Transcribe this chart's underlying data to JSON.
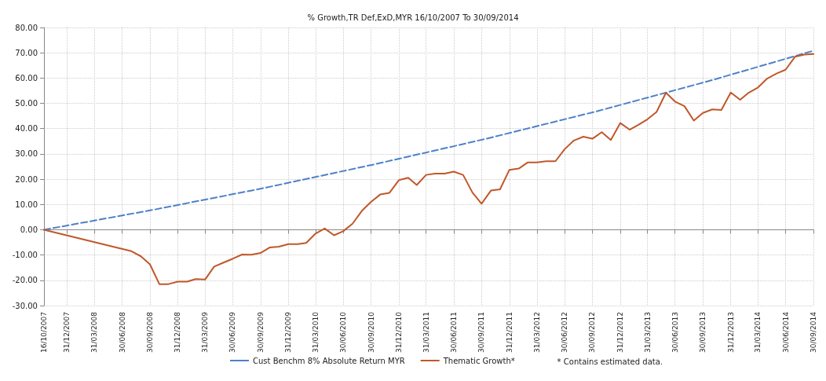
{
  "chart_data": {
    "type": "line",
    "title": "% Growth,TR Def,ExD,MYR 16/10/2007 To 30/09/2014",
    "xlim": [
      "2007-10-16",
      "2014-09-30"
    ],
    "xticks": [
      {
        "value": "2007-10-16",
        "label": "16/10/2007"
      },
      {
        "value": "2007-12-31",
        "label": "31/12/2007"
      },
      {
        "value": "2008-03-31",
        "label": "31/03/2008"
      },
      {
        "value": "2008-06-30",
        "label": "30/06/2008"
      },
      {
        "value": "2008-09-30",
        "label": "30/09/2008"
      },
      {
        "value": "2008-12-31",
        "label": "31/12/2008"
      },
      {
        "value": "2009-03-31",
        "label": "31/03/2009"
      },
      {
        "value": "2009-06-30",
        "label": "30/06/2009"
      },
      {
        "value": "2009-09-30",
        "label": "30/09/2009"
      },
      {
        "value": "2009-12-31",
        "label": "31/12/2009"
      },
      {
        "value": "2010-03-31",
        "label": "31/03/2010"
      },
      {
        "value": "2010-06-30",
        "label": "30/06/2010"
      },
      {
        "value": "2010-09-30",
        "label": "30/09/2010"
      },
      {
        "value": "2010-12-31",
        "label": "31/12/2010"
      },
      {
        "value": "2011-03-31",
        "label": "31/03/2011"
      },
      {
        "value": "2011-06-30",
        "label": "30/06/2011"
      },
      {
        "value": "2011-09-30",
        "label": "30/09/2011"
      },
      {
        "value": "2011-12-31",
        "label": "31/12/2011"
      },
      {
        "value": "2012-03-31",
        "label": "31/03/2012"
      },
      {
        "value": "2012-06-30",
        "label": "30/06/2012"
      },
      {
        "value": "2012-09-30",
        "label": "30/09/2012"
      },
      {
        "value": "2012-12-31",
        "label": "31/12/2012"
      },
      {
        "value": "2013-03-31",
        "label": "31/03/2013"
      },
      {
        "value": "2013-06-30",
        "label": "30/06/2013"
      },
      {
        "value": "2013-09-30",
        "label": "30/09/2013"
      },
      {
        "value": "2013-12-31",
        "label": "31/12/2013"
      },
      {
        "value": "2014-03-31",
        "label": "31/03/2014"
      },
      {
        "value": "2014-06-30",
        "label": "30/06/2014"
      },
      {
        "value": "2014-09-30",
        "label": "30/09/2014"
      }
    ],
    "ylim": [
      -30,
      80
    ],
    "yticks": [
      {
        "value": -30,
        "label": "-30.00"
      },
      {
        "value": -20,
        "label": "-20.00"
      },
      {
        "value": -10,
        "label": "-10.00"
      },
      {
        "value": 0,
        "label": "0.00"
      },
      {
        "value": 10,
        "label": "10.00"
      },
      {
        "value": 20,
        "label": "20.00"
      },
      {
        "value": 30,
        "label": "30.00"
      },
      {
        "value": 40,
        "label": "40.00"
      },
      {
        "value": 50,
        "label": "50.00"
      },
      {
        "value": 60,
        "label": "60.00"
      },
      {
        "value": 70,
        "label": "70.00"
      },
      {
        "value": 80,
        "label": "80.00"
      }
    ],
    "grid": true,
    "legend": "bottom",
    "marker": "none",
    "annotations": [
      "* Contains estimated data."
    ],
    "series": [
      {
        "name": "Cust Benchm 8% Absolute Return MYR",
        "color": "#4f81c7",
        "line_style": "dashed",
        "x": [
          "2007-10-16",
          "2008-10-16",
          "2009-10-16",
          "2010-10-16",
          "2011-10-16",
          "2012-10-16",
          "2013-10-16",
          "2014-09-30"
        ],
        "values": [
          0,
          8,
          16.6,
          26,
          36,
          46.9,
          58.7,
          70.8
        ]
      },
      {
        "name": "Thematic Growth*",
        "color": "#c0582a",
        "line_style": "solid",
        "x": [
          "2007-10-16",
          "2008-07-31",
          "2008-08-31",
          "2008-09-30",
          "2008-10-31",
          "2008-11-30",
          "2008-12-31",
          "2009-01-31",
          "2009-02-28",
          "2009-03-31",
          "2009-04-30",
          "2009-05-31",
          "2009-06-30",
          "2009-07-31",
          "2009-08-31",
          "2009-09-30",
          "2009-10-31",
          "2009-11-30",
          "2009-12-31",
          "2010-01-31",
          "2010-02-28",
          "2010-03-31",
          "2010-04-30",
          "2010-05-31",
          "2010-06-30",
          "2010-07-31",
          "2010-08-31",
          "2010-09-30",
          "2010-10-31",
          "2010-11-30",
          "2010-12-31",
          "2011-01-31",
          "2011-02-28",
          "2011-03-31",
          "2011-04-30",
          "2011-05-31",
          "2011-06-30",
          "2011-07-31",
          "2011-08-31",
          "2011-09-30",
          "2011-10-31",
          "2011-11-30",
          "2011-12-31",
          "2012-01-31",
          "2012-02-29",
          "2012-03-31",
          "2012-04-30",
          "2012-05-31",
          "2012-06-30",
          "2012-07-31",
          "2012-08-31",
          "2012-09-30",
          "2012-10-31",
          "2012-11-30",
          "2012-12-31",
          "2013-01-31",
          "2013-02-28",
          "2013-03-31",
          "2013-04-30",
          "2013-05-31",
          "2013-06-30",
          "2013-07-31",
          "2013-08-31",
          "2013-09-30",
          "2013-10-31",
          "2013-11-30",
          "2013-12-31",
          "2014-01-31",
          "2014-02-28",
          "2014-03-31",
          "2014-04-30",
          "2014-05-31",
          "2014-06-30",
          "2014-07-31",
          "2014-08-31",
          "2014-09-30"
        ],
        "values": [
          0,
          -8.5,
          -10.5,
          -13.7,
          -21.5,
          -21.5,
          -20.5,
          -20.5,
          -19.5,
          -19.7,
          -14.6,
          -13,
          -11.5,
          -9.8,
          -9.9,
          -9.2,
          -7,
          -6.7,
          -5.7,
          -5.7,
          -5.2,
          -1.5,
          0.5,
          -2.2,
          -0.6,
          2.4,
          7.5,
          11,
          14,
          14.6,
          19.6,
          20.6,
          17.7,
          21.7,
          22.2,
          22.2,
          23,
          21.7,
          14.7,
          10.3,
          15.5,
          16,
          23.7,
          24.2,
          26.6,
          26.6,
          27.1,
          27.1,
          31.8,
          35.3,
          36.8,
          36,
          38.6,
          35.5,
          42.2,
          39.6,
          41.4,
          43.7,
          46.6,
          54.2,
          50.7,
          48.9,
          43.2,
          46.2,
          47.6,
          47.4,
          54.3,
          51.4,
          54.2,
          56.3,
          59.8,
          61.8,
          63.3,
          68.4,
          69.3,
          69.5
        ]
      }
    ]
  }
}
